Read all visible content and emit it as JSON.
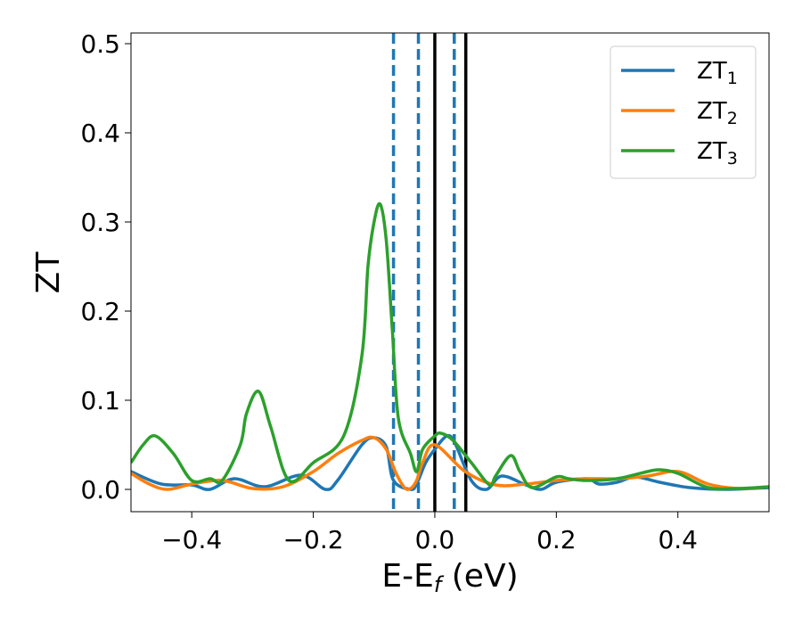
{
  "chart_data": {
    "type": "line",
    "xlabel_main": "E-E",
    "xlabel_sub": "f",
    "xlabel_unit": " (eV)",
    "ylabel": "ZT",
    "xlim": [
      -0.5,
      0.55
    ],
    "ylim": [
      -0.025,
      0.512
    ],
    "grid": false,
    "legend_position": "top-right",
    "xticks": [
      -0.4,
      -0.2,
      0.0,
      0.2,
      0.4
    ],
    "xtick_labels": [
      "−0.4",
      "−0.2",
      "0.0",
      "0.2",
      "0.4"
    ],
    "yticks": [
      0.0,
      0.1,
      0.2,
      0.3,
      0.4,
      0.5
    ],
    "ytick_labels": [
      "0.0",
      "0.1",
      "0.2",
      "0.3",
      "0.4",
      "0.5"
    ],
    "vlines": [
      {
        "x": -0.068,
        "style": "dashed",
        "color": "#1f77b4"
      },
      {
        "x": -0.027,
        "style": "dashed",
        "color": "#1f77b4"
      },
      {
        "x": 0.0,
        "style": "solid",
        "color": "#000000"
      },
      {
        "x": 0.032,
        "style": "dashed",
        "color": "#1f77b4"
      },
      {
        "x": 0.051,
        "style": "solid",
        "color": "#000000"
      }
    ],
    "series": [
      {
        "name": "ZT",
        "sub": "1",
        "color": "#1f77b4",
        "x": [
          -0.5,
          -0.45,
          -0.4,
          -0.37,
          -0.33,
          -0.28,
          -0.22,
          -0.18,
          -0.16,
          -0.12,
          -0.1,
          -0.08,
          -0.068,
          -0.04,
          -0.03,
          -0.015,
          0.0,
          0.02,
          0.033,
          0.06,
          0.085,
          0.11,
          0.15,
          0.175,
          0.2,
          0.25,
          0.27,
          0.3,
          0.33,
          0.37,
          0.42,
          0.48,
          0.55
        ],
        "y": [
          0.02,
          0.006,
          0.005,
          0.0,
          0.012,
          0.003,
          0.016,
          0.0,
          0.01,
          0.05,
          0.058,
          0.048,
          0.01,
          0.0,
          0.006,
          0.03,
          0.045,
          0.06,
          0.052,
          0.01,
          0.0,
          0.015,
          0.005,
          0.0,
          0.008,
          0.012,
          0.006,
          0.008,
          0.014,
          0.008,
          0.002,
          0.0,
          0.002
        ]
      },
      {
        "name": "ZT",
        "sub": "2",
        "color": "#ff7f0e",
        "x": [
          -0.5,
          -0.47,
          -0.44,
          -0.4,
          -0.35,
          -0.3,
          -0.25,
          -0.2,
          -0.16,
          -0.12,
          -0.1,
          -0.08,
          -0.065,
          -0.05,
          -0.04,
          -0.03,
          -0.02,
          0.0,
          0.05,
          0.1,
          0.15,
          0.2,
          0.25,
          0.3,
          0.35,
          0.4,
          0.45,
          0.5,
          0.55
        ],
        "y": [
          0.018,
          0.006,
          0.0,
          0.006,
          0.01,
          0.001,
          0.003,
          0.02,
          0.04,
          0.055,
          0.058,
          0.045,
          0.02,
          0.002,
          0.001,
          0.01,
          0.03,
          0.05,
          0.02,
          0.005,
          0.006,
          0.01,
          0.012,
          0.012,
          0.015,
          0.02,
          0.006,
          0.001,
          0.003
        ]
      },
      {
        "name": "ZT",
        "sub": "3",
        "color": "#2ca02c",
        "x": [
          -0.5,
          -0.48,
          -0.46,
          -0.43,
          -0.4,
          -0.37,
          -0.35,
          -0.32,
          -0.31,
          -0.29,
          -0.27,
          -0.24,
          -0.2,
          -0.15,
          -0.12,
          -0.11,
          -0.1,
          -0.09,
          -0.08,
          -0.07,
          -0.06,
          -0.04,
          -0.03,
          -0.02,
          0.0,
          0.01,
          0.03,
          0.06,
          0.09,
          0.1,
          0.125,
          0.14,
          0.16,
          0.2,
          0.22,
          0.25,
          0.3,
          0.35,
          0.37,
          0.4,
          0.45,
          0.5,
          0.55
        ],
        "y": [
          0.03,
          0.05,
          0.06,
          0.04,
          0.01,
          0.012,
          0.01,
          0.05,
          0.085,
          0.11,
          0.07,
          0.01,
          0.03,
          0.06,
          0.15,
          0.25,
          0.3,
          0.32,
          0.28,
          0.18,
          0.08,
          0.04,
          0.02,
          0.045,
          0.06,
          0.063,
          0.055,
          0.03,
          0.005,
          0.015,
          0.038,
          0.02,
          0.002,
          0.014,
          0.012,
          0.01,
          0.012,
          0.02,
          0.022,
          0.018,
          0.002,
          0.001,
          0.003
        ]
      }
    ]
  }
}
